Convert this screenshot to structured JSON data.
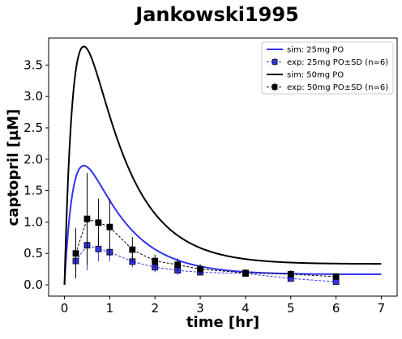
{
  "chart_data": {
    "type": "line",
    "title": "Jankowski1995",
    "xlabel": "time [hr]",
    "ylabel": "captopril [µM]",
    "xlim": [
      -0.35,
      7.35
    ],
    "ylim": [
      -0.18,
      3.93
    ],
    "xticks": [
      0,
      1,
      2,
      3,
      4,
      5,
      6,
      7
    ],
    "yticks": [
      0.0,
      0.5,
      1.0,
      1.5,
      2.0,
      2.5,
      3.0,
      3.5
    ],
    "ytick_labels": [
      "0.0",
      "0.5",
      "1.0",
      "1.5",
      "2.0",
      "2.5",
      "3.0",
      "3.5"
    ],
    "grid": false,
    "legend_position": "top-right",
    "sim_model": {
      "ka": 4.5,
      "ke": 1.07,
      "plateau": 0.15,
      "plateau_rate": 0.6
    },
    "series": [
      {
        "name": "sim: 25mg PO",
        "kind": "sim",
        "color": "#3333ee",
        "peak": 1.86,
        "t_end": 7
      },
      {
        "name": "exp: 25mg PO±SD (n=6)",
        "kind": "exp",
        "color": "#3333ee",
        "marker_fill": "#3333ee",
        "x": [
          0.25,
          0.5,
          0.75,
          1.0,
          1.5,
          2.0,
          2.5,
          3.0,
          4.0,
          5.0,
          6.0
        ],
        "y": [
          0.38,
          0.63,
          0.57,
          0.52,
          0.37,
          0.28,
          0.23,
          0.2,
          0.18,
          0.1,
          0.05
        ],
        "sd": [
          0.15,
          0.4,
          0.2,
          0.15,
          0.09,
          0.08,
          0.07,
          0.05,
          0.05,
          0.05,
          0.03
        ]
      },
      {
        "name": "sim: 50mg PO",
        "kind": "sim",
        "color": "#000000",
        "peak": 3.72,
        "t_end": 7
      },
      {
        "name": "exp: 50mg PO±SD (n=6)",
        "kind": "exp",
        "color": "#000000",
        "marker_fill": "#000000",
        "x": [
          0.25,
          0.5,
          0.75,
          1.0,
          1.5,
          2.0,
          2.5,
          3.0,
          4.0,
          5.0,
          6.0
        ],
        "y": [
          0.5,
          1.05,
          0.99,
          0.92,
          0.56,
          0.38,
          0.32,
          0.25,
          0.19,
          0.17,
          0.13
        ],
        "sd": [
          0.4,
          0.73,
          0.38,
          0.45,
          0.2,
          0.1,
          0.1,
          0.08,
          0.06,
          0.06,
          0.05
        ]
      }
    ]
  }
}
